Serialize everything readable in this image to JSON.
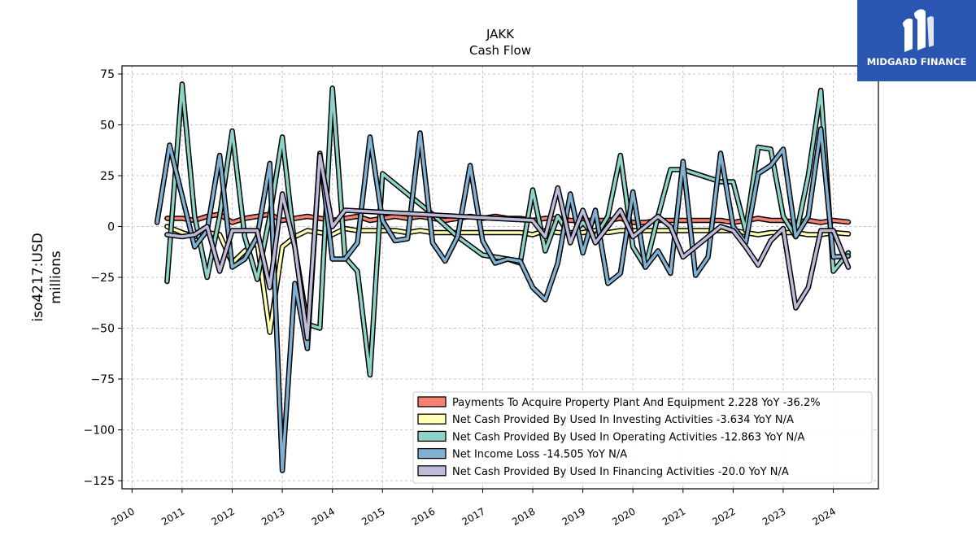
{
  "chart_data": {
    "type": "line",
    "title": "JAKK",
    "subtitle": "Cash Flow",
    "ylabel_line1": "iso4217:USD",
    "ylabel_line2": "millions",
    "xlim": [
      2009.8,
      2024.9
    ],
    "ylim": [
      -129,
      79
    ],
    "yticks": [
      75,
      50,
      25,
      0,
      -25,
      -50,
      -75,
      -100,
      -125
    ],
    "ytick_labels": [
      "75",
      "50",
      "25",
      "0",
      "−25",
      "−50",
      "−75",
      "−100",
      "−125"
    ],
    "xticks": [
      2010,
      2011,
      2012,
      2013,
      2014,
      2015,
      2016,
      2017,
      2018,
      2019,
      2020,
      2021,
      2022,
      2023,
      2024
    ],
    "xtick_labels": [
      "2010",
      "2011",
      "2012",
      "2013",
      "2014",
      "2015",
      "2016",
      "2017",
      "2018",
      "2019",
      "2020",
      "2021",
      "2022",
      "2023",
      "2024"
    ],
    "grid": true,
    "legend_position": "lower-right",
    "series": [
      {
        "name": "Payments To Acquire Property Plant And Equipment  2.228 YoY -36.2%",
        "color": "#fa8072",
        "points": [
          [
            2010.7,
            4
          ],
          [
            2011.0,
            4
          ],
          [
            2011.25,
            3
          ],
          [
            2011.5,
            5
          ],
          [
            2011.75,
            6
          ],
          [
            2012.0,
            2
          ],
          [
            2012.25,
            4
          ],
          [
            2012.5,
            5
          ],
          [
            2012.75,
            6
          ],
          [
            2013.0,
            3
          ],
          [
            2013.25,
            4
          ],
          [
            2013.5,
            5
          ],
          [
            2013.75,
            4
          ],
          [
            2014.0,
            3
          ],
          [
            2014.25,
            4
          ],
          [
            2014.5,
            5
          ],
          [
            2014.75,
            3
          ],
          [
            2015.0,
            4
          ],
          [
            2015.25,
            5
          ],
          [
            2015.5,
            4
          ],
          [
            2015.75,
            5
          ],
          [
            2016.0,
            4
          ],
          [
            2016.25,
            3
          ],
          [
            2016.5,
            4
          ],
          [
            2016.75,
            5
          ],
          [
            2017.0,
            4
          ],
          [
            2017.25,
            5
          ],
          [
            2017.5,
            4
          ],
          [
            2017.75,
            4
          ],
          [
            2018.0,
            3
          ],
          [
            2018.25,
            4
          ],
          [
            2018.5,
            4
          ],
          [
            2018.75,
            3
          ],
          [
            2019.0,
            3
          ],
          [
            2019.25,
            3
          ],
          [
            2019.5,
            3
          ],
          [
            2019.75,
            4
          ],
          [
            2020.0,
            2
          ],
          [
            2020.25,
            2
          ],
          [
            2020.5,
            3
          ],
          [
            2020.75,
            3
          ],
          [
            2021.0,
            3
          ],
          [
            2021.25,
            3
          ],
          [
            2021.5,
            3
          ],
          [
            2021.75,
            3
          ],
          [
            2022.0,
            2
          ],
          [
            2022.25,
            3
          ],
          [
            2022.5,
            4
          ],
          [
            2022.75,
            3
          ],
          [
            2023.0,
            3
          ],
          [
            2023.25,
            2
          ],
          [
            2023.5,
            3
          ],
          [
            2023.75,
            2
          ],
          [
            2024.0,
            3
          ],
          [
            2024.3,
            2.2
          ]
        ]
      },
      {
        "name": "Net Cash Provided By Used In Investing Activities  -3.634 YoY N/A",
        "color": "#ffffb3",
        "points": [
          [
            2010.7,
            0
          ],
          [
            2011.0,
            -3
          ],
          [
            2011.25,
            -5
          ],
          [
            2011.5,
            -3
          ],
          [
            2011.75,
            -4
          ],
          [
            2012.0,
            -18
          ],
          [
            2012.25,
            -12
          ],
          [
            2012.5,
            -8
          ],
          [
            2012.75,
            -52
          ],
          [
            2013.0,
            -10
          ],
          [
            2013.25,
            -5
          ],
          [
            2013.5,
            -2
          ],
          [
            2013.75,
            -3
          ],
          [
            2014.0,
            -4
          ],
          [
            2014.25,
            -1
          ],
          [
            2014.5,
            -2
          ],
          [
            2014.75,
            -2
          ],
          [
            2015.0,
            -2
          ],
          [
            2015.25,
            -2
          ],
          [
            2015.5,
            -3
          ],
          [
            2015.75,
            -2
          ],
          [
            2016.0,
            -3
          ],
          [
            2016.25,
            -3
          ],
          [
            2016.5,
            -3
          ],
          [
            2016.75,
            -3
          ],
          [
            2017.0,
            -3
          ],
          [
            2017.25,
            -3
          ],
          [
            2017.5,
            -3
          ],
          [
            2017.75,
            -3
          ],
          [
            2018.0,
            -4
          ],
          [
            2018.25,
            -2
          ],
          [
            2018.5,
            -3
          ],
          [
            2018.75,
            -3
          ],
          [
            2019.0,
            -3
          ],
          [
            2019.25,
            -2
          ],
          [
            2019.5,
            -3
          ],
          [
            2019.75,
            -2
          ],
          [
            2020.0,
            -2
          ],
          [
            2020.25,
            -2
          ],
          [
            2020.5,
            -2
          ],
          [
            2020.75,
            -2
          ],
          [
            2021.0,
            -2
          ],
          [
            2021.25,
            -2
          ],
          [
            2021.5,
            -2
          ],
          [
            2021.75,
            -2
          ],
          [
            2022.0,
            -2
          ],
          [
            2022.25,
            -3
          ],
          [
            2022.5,
            -4
          ],
          [
            2022.75,
            -3
          ],
          [
            2023.0,
            -3
          ],
          [
            2023.25,
            -3
          ],
          [
            2023.5,
            -4
          ],
          [
            2023.75,
            -4
          ],
          [
            2024.0,
            -3
          ],
          [
            2024.3,
            -3.6
          ]
        ]
      },
      {
        "name": "Net Cash Provided By Used In Operating Activities  -12.863 YoY N/A",
        "color": "#8dd3c7",
        "points": [
          [
            2010.7,
            -27
          ],
          [
            2011.0,
            70
          ],
          [
            2011.25,
            5
          ],
          [
            2011.5,
            -25
          ],
          [
            2011.75,
            5
          ],
          [
            2012.0,
            47
          ],
          [
            2012.25,
            -5
          ],
          [
            2012.5,
            -26
          ],
          [
            2012.75,
            5
          ],
          [
            2013.0,
            44
          ],
          [
            2013.25,
            -10
          ],
          [
            2013.5,
            -48
          ],
          [
            2013.75,
            -50
          ],
          [
            2014.0,
            68
          ],
          [
            2014.25,
            -15
          ],
          [
            2014.5,
            -22
          ],
          [
            2014.75,
            -73
          ],
          [
            2015.0,
            26
          ],
          [
            2015.5,
            16
          ],
          [
            2016.0,
            6
          ],
          [
            2016.5,
            -5
          ],
          [
            2017.0,
            -14
          ],
          [
            2017.5,
            -16
          ],
          [
            2017.75,
            -18
          ],
          [
            2018.0,
            18
          ],
          [
            2018.25,
            -12
          ],
          [
            2018.5,
            5
          ],
          [
            2018.75,
            -5
          ],
          [
            2019.0,
            2
          ],
          [
            2019.25,
            -5
          ],
          [
            2019.5,
            5
          ],
          [
            2019.75,
            35
          ],
          [
            2020.0,
            -10
          ],
          [
            2020.25,
            -20
          ],
          [
            2020.5,
            5
          ],
          [
            2020.75,
            28
          ],
          [
            2021.0,
            28
          ],
          [
            2021.25,
            26
          ],
          [
            2021.5,
            24
          ],
          [
            2021.75,
            22
          ],
          [
            2022.0,
            22
          ],
          [
            2022.25,
            -2
          ],
          [
            2022.5,
            39
          ],
          [
            2022.75,
            38
          ],
          [
            2023.0,
            5
          ],
          [
            2023.25,
            -5
          ],
          [
            2023.5,
            25
          ],
          [
            2023.75,
            67
          ],
          [
            2024.0,
            -22
          ],
          [
            2024.3,
            -12.9
          ]
        ]
      },
      {
        "name": "Net Income Loss  -14.505 YoY N/A",
        "color": "#80b1d3",
        "points": [
          [
            2010.5,
            2
          ],
          [
            2010.75,
            40
          ],
          [
            2011.0,
            15
          ],
          [
            2011.25,
            -10
          ],
          [
            2011.5,
            -2
          ],
          [
            2011.75,
            35
          ],
          [
            2012.0,
            -20
          ],
          [
            2012.25,
            -16
          ],
          [
            2012.5,
            -5
          ],
          [
            2012.75,
            31
          ],
          [
            2013.0,
            -120
          ],
          [
            2013.25,
            -28
          ],
          [
            2013.5,
            -60
          ],
          [
            2013.75,
            36
          ],
          [
            2014.0,
            -16
          ],
          [
            2014.25,
            -16
          ],
          [
            2014.5,
            -8
          ],
          [
            2014.75,
            44
          ],
          [
            2015.0,
            3
          ],
          [
            2015.25,
            -7
          ],
          [
            2015.5,
            -6
          ],
          [
            2015.75,
            46
          ],
          [
            2016.0,
            -8
          ],
          [
            2016.25,
            -17
          ],
          [
            2016.5,
            -5
          ],
          [
            2016.75,
            30
          ],
          [
            2017.0,
            -7
          ],
          [
            2017.25,
            -18
          ],
          [
            2017.5,
            -16
          ],
          [
            2017.75,
            -17
          ],
          [
            2018.0,
            -30
          ],
          [
            2018.25,
            -36
          ],
          [
            2018.5,
            -18
          ],
          [
            2018.75,
            16
          ],
          [
            2019.0,
            -13
          ],
          [
            2019.25,
            8
          ],
          [
            2019.5,
            -28
          ],
          [
            2019.75,
            -23
          ],
          [
            2020.0,
            17
          ],
          [
            2020.25,
            -20
          ],
          [
            2020.5,
            -12
          ],
          [
            2020.75,
            -23
          ],
          [
            2021.0,
            32
          ],
          [
            2021.25,
            -24
          ],
          [
            2021.5,
            -15
          ],
          [
            2021.75,
            36
          ],
          [
            2022.0,
            0
          ],
          [
            2022.25,
            -8
          ],
          [
            2022.5,
            26
          ],
          [
            2022.75,
            30
          ],
          [
            2023.0,
            38
          ],
          [
            2023.25,
            -5
          ],
          [
            2023.5,
            5
          ],
          [
            2023.75,
            48
          ],
          [
            2024.0,
            -15
          ],
          [
            2024.3,
            -14.5
          ]
        ]
      },
      {
        "name": "Net Cash Provided By Used In Financing Activities  -20.0 YoY N/A",
        "color": "#bebada",
        "points": [
          [
            2010.7,
            -4
          ],
          [
            2011.0,
            -5
          ],
          [
            2011.25,
            -4
          ],
          [
            2011.5,
            0
          ],
          [
            2011.75,
            -22
          ],
          [
            2012.0,
            -2
          ],
          [
            2012.25,
            -2
          ],
          [
            2012.5,
            -2
          ],
          [
            2012.75,
            -30
          ],
          [
            2013.0,
            16
          ],
          [
            2013.25,
            -10
          ],
          [
            2013.5,
            -55
          ],
          [
            2013.75,
            35
          ],
          [
            2014.0,
            0
          ],
          [
            2014.25,
            8
          ],
          [
            2018.0,
            3
          ],
          [
            2018.25,
            -5
          ],
          [
            2018.5,
            19
          ],
          [
            2018.75,
            -8
          ],
          [
            2019.0,
            8
          ],
          [
            2019.25,
            -8
          ],
          [
            2019.5,
            0
          ],
          [
            2019.75,
            8
          ],
          [
            2020.0,
            -5
          ],
          [
            2020.5,
            5
          ],
          [
            2020.75,
            0
          ],
          [
            2021.0,
            -15
          ],
          [
            2021.25,
            -10
          ],
          [
            2021.5,
            -5
          ],
          [
            2021.75,
            0
          ],
          [
            2022.0,
            -2
          ],
          [
            2022.25,
            -10
          ],
          [
            2022.5,
            -19
          ],
          [
            2022.75,
            -7
          ],
          [
            2023.0,
            -1
          ],
          [
            2023.25,
            -40
          ],
          [
            2023.5,
            -30
          ],
          [
            2023.75,
            -2
          ],
          [
            2024.0,
            -2
          ],
          [
            2024.3,
            -20
          ]
        ]
      }
    ]
  },
  "logo": {
    "text": "MIDGARD FINANCE"
  }
}
